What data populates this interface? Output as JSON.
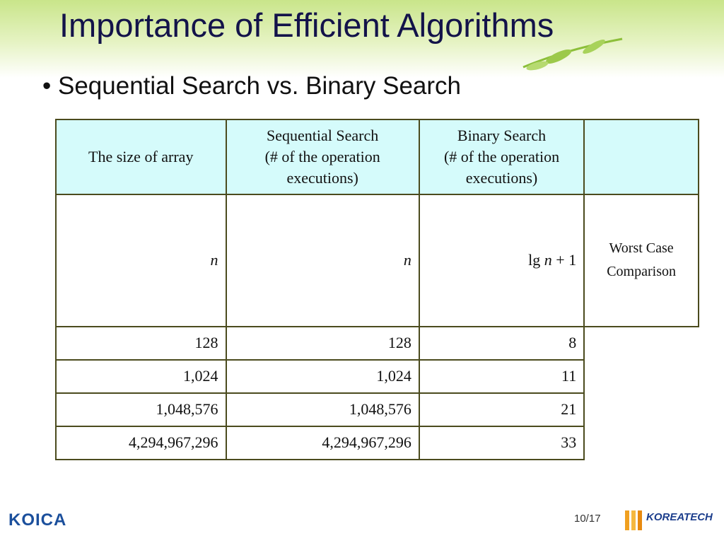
{
  "header": {
    "title": "Importance of Efficient Algorithms",
    "bullet": "Sequential Search vs. Binary Search"
  },
  "table": {
    "columns": [
      [
        "The size of array"
      ],
      [
        "Sequential Search",
        "(# of the operation",
        "executions)"
      ],
      [
        "Binary Search",
        "(# of the operation",
        "executions)"
      ],
      []
    ],
    "formula_row": {
      "size": "n",
      "sequential": "n",
      "binary": [
        "lg ",
        "n",
        " + 1"
      ]
    },
    "rows": [
      [
        "128",
        "128",
        "8"
      ],
      [
        "1,024",
        "1,024",
        "11"
      ],
      [
        "1,048,576",
        "1,048,576",
        "21"
      ],
      [
        "4,294,967,296",
        "4,294,967,296",
        "33"
      ]
    ],
    "note": [
      "Worst Case",
      "Comparison"
    ]
  },
  "footer": {
    "page": "10/17",
    "left_logo": "KOICA",
    "right_logo": "KOREATECH"
  }
}
